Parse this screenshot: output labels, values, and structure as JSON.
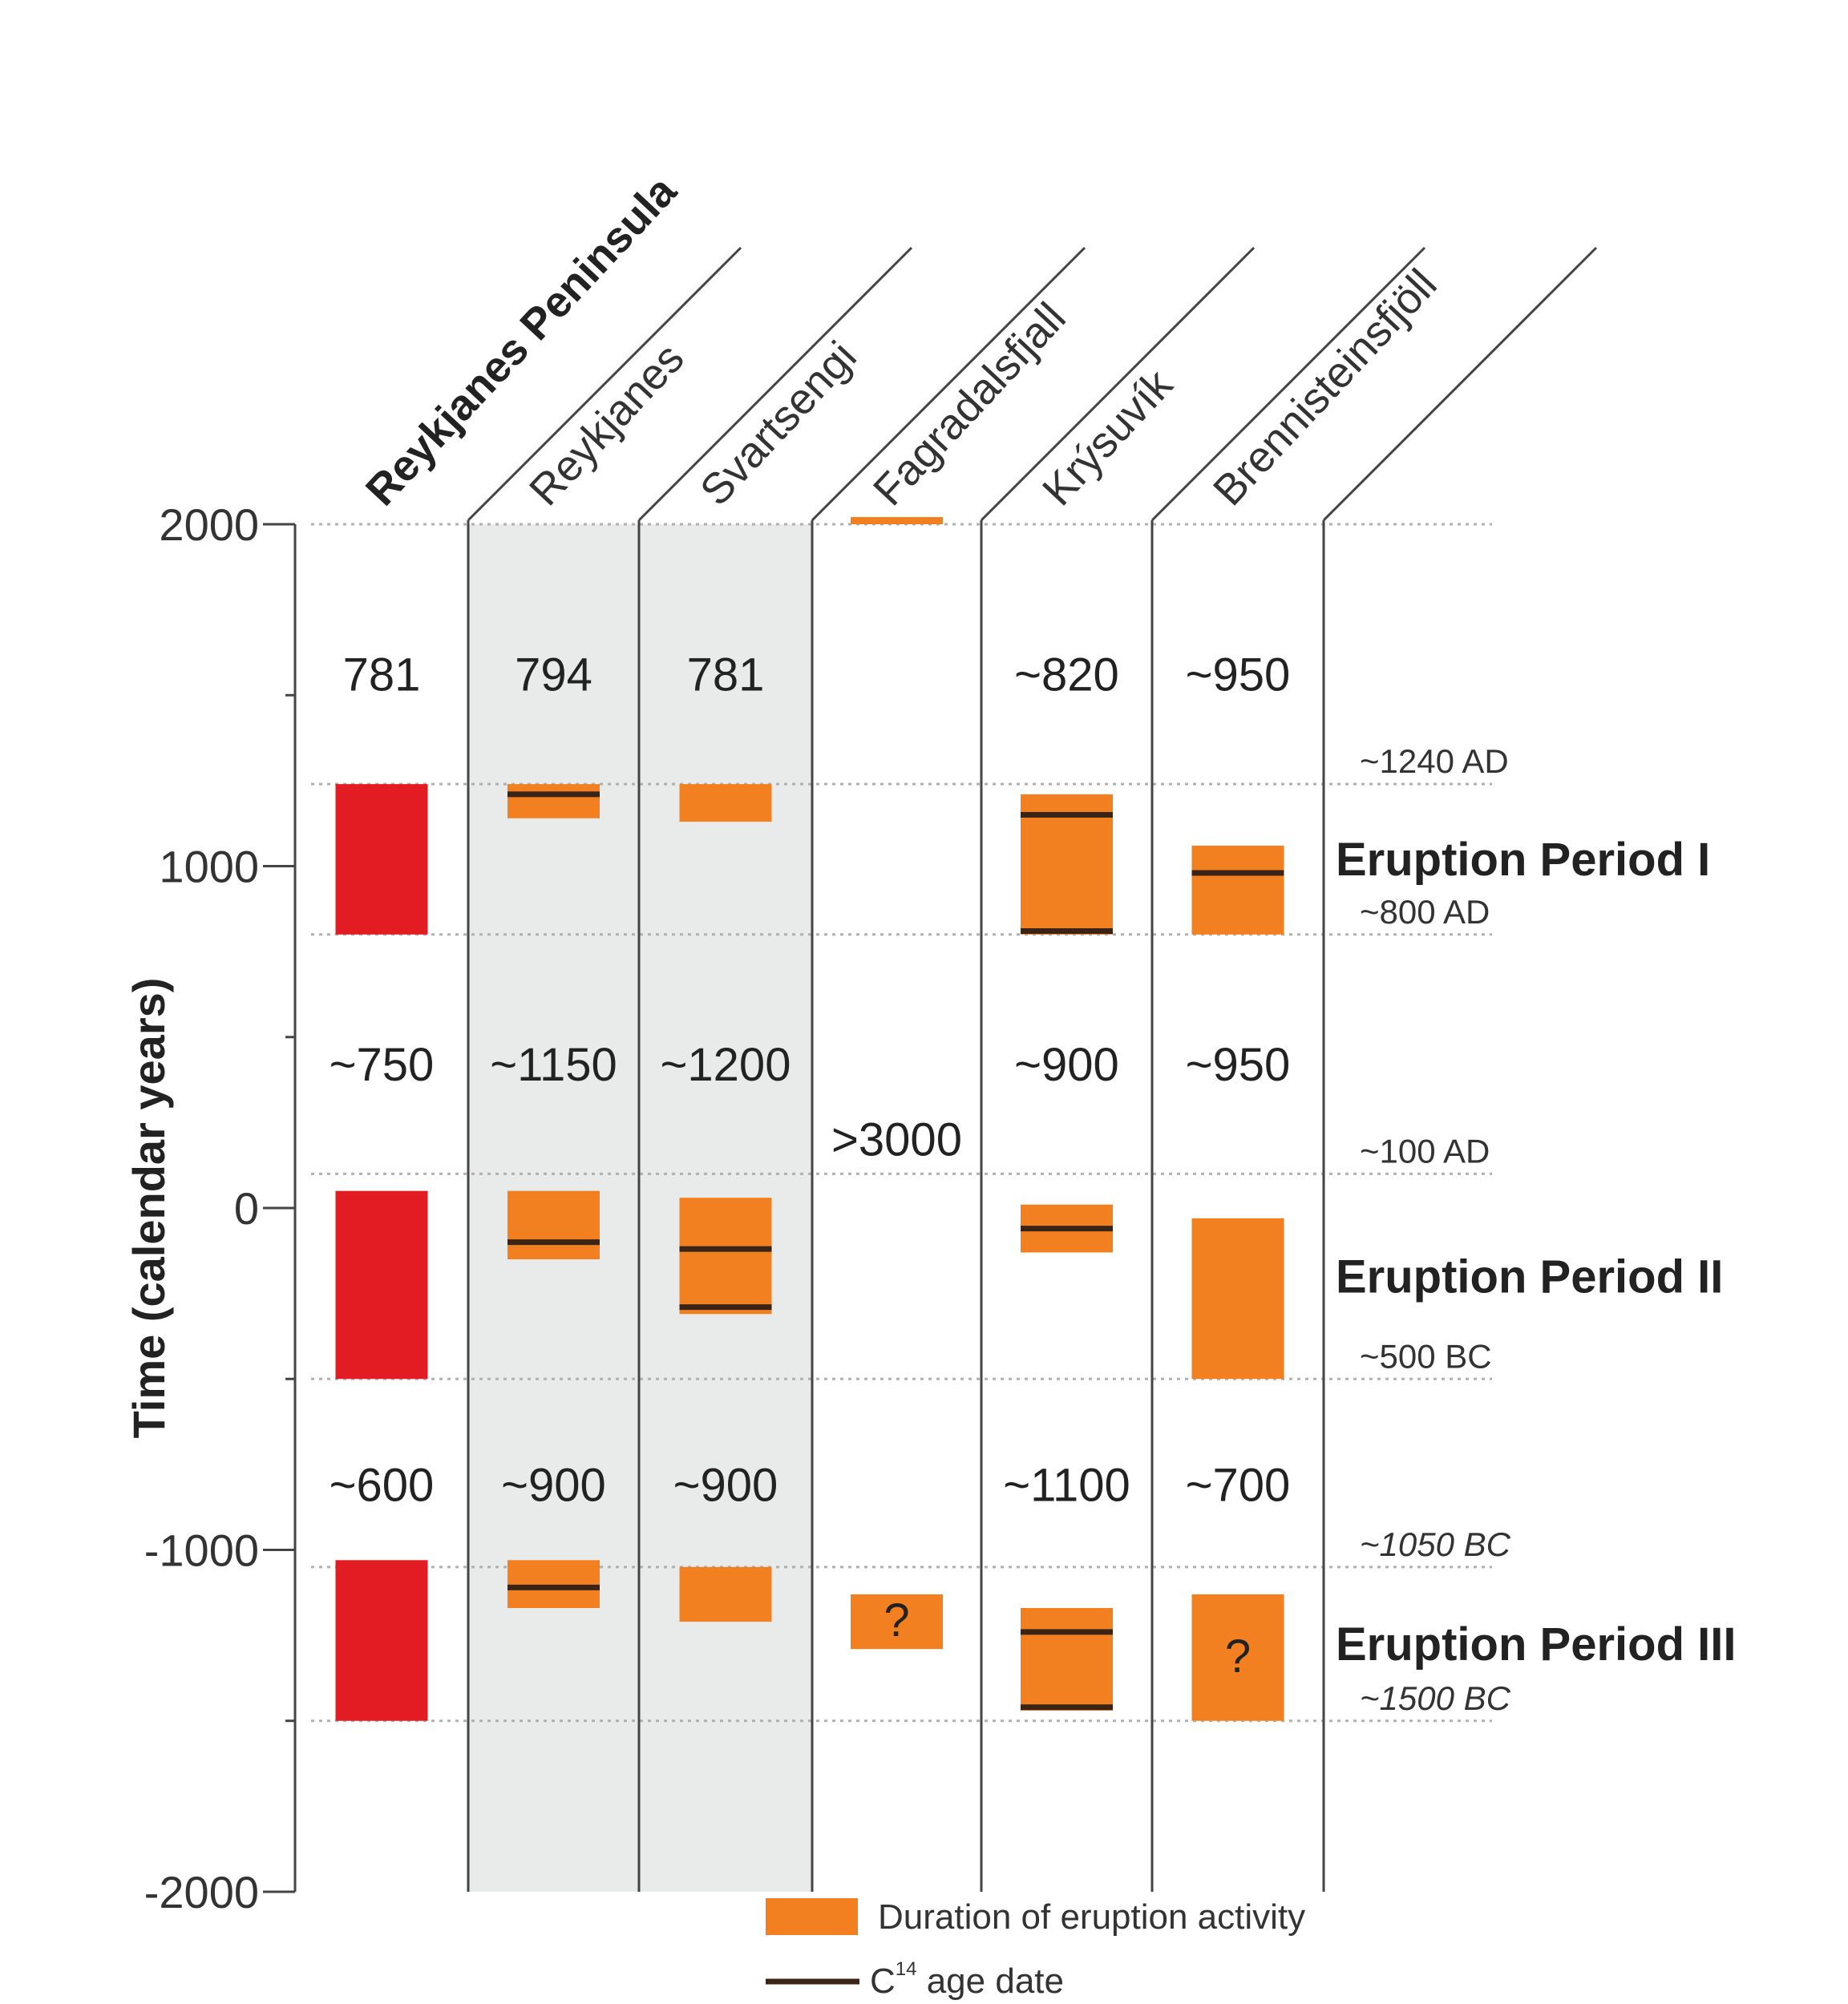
{
  "chart_data": {
    "type": "bar",
    "subtype": "range-timeline",
    "title": "Reykjanes Peninsula",
    "ylabel": "Time (calendar years)",
    "xlabel": "",
    "ylim": [
      -2000,
      2000
    ],
    "yticks": [
      2000,
      1000,
      0,
      -1000,
      -2000
    ],
    "ytick_labels": [
      "2000",
      "1000",
      "0",
      "-1000",
      "-2000"
    ],
    "grid": "dotted lines at period boundaries",
    "categories": [
      "Reykjanes Peninsula",
      "Reykjanes",
      "Svartsengi",
      "Fagradalsfjall",
      "Krýsuvík",
      "Brennisteinsfjöll"
    ],
    "shaded_columns": [
      "Reykjanes",
      "Svartsengi"
    ],
    "period_boundaries": [
      {
        "year": 1240,
        "label": "~1240 AD"
      },
      {
        "year": 800,
        "label": "~800 AD"
      },
      {
        "year": 100,
        "label": "~100 AD"
      },
      {
        "year": -500,
        "label": "~500 BC"
      },
      {
        "year": -1050,
        "label": "~1050 BC"
      },
      {
        "year": -1500,
        "label": "~1500 BC"
      }
    ],
    "periods": [
      {
        "name": "Eruption Period I",
        "start": 1240,
        "end": 800
      },
      {
        "name": "Eruption Period II",
        "start": 100,
        "end": -500
      },
      {
        "name": "Eruption Period III",
        "start": -1050,
        "end": -1500
      }
    ],
    "interval_labels": [
      {
        "anchor_year": 1560,
        "values": [
          "781",
          "794",
          "781",
          "",
          "~820",
          "~950"
        ]
      },
      {
        "anchor_year": 420,
        "values": [
          "~750",
          "~1150",
          "~1200",
          "",
          "~900",
          "~950"
        ]
      },
      {
        "anchor_year": 200,
        "values": [
          "",
          "",
          "",
          ">3000",
          "",
          ""
        ]
      },
      {
        "anchor_year": -810,
        "values": [
          "~600",
          "~900",
          "~900",
          "",
          "~1100",
          "~700"
        ]
      }
    ],
    "series": [
      {
        "name": "Reykjanes Peninsula",
        "color": "#e31b23",
        "ranges": [
          {
            "top": 1240,
            "bottom": 800,
            "c14": []
          },
          {
            "top": 50,
            "bottom": -500,
            "c14": []
          },
          {
            "top": -1030,
            "bottom": -1500,
            "c14": []
          }
        ]
      },
      {
        "name": "Reykjanes",
        "color": "#f28020",
        "ranges": [
          {
            "top": 1240,
            "bottom": 1140,
            "c14": [
              1210
            ]
          },
          {
            "top": 50,
            "bottom": -150,
            "c14": [
              -100
            ]
          },
          {
            "top": -1030,
            "bottom": -1170,
            "c14": [
              -1110
            ]
          }
        ]
      },
      {
        "name": "Svartsengi",
        "color": "#f28020",
        "ranges": [
          {
            "top": 1240,
            "bottom": 1130,
            "c14": []
          },
          {
            "top": 30,
            "bottom": -310,
            "c14": [
              -120,
              -290
            ]
          },
          {
            "top": -1050,
            "bottom": -1210,
            "c14": []
          }
        ]
      },
      {
        "name": "Fagradalsfjall",
        "color": "#f28020",
        "ranges": [
          {
            "top": 2021,
            "bottom": 2000,
            "c14": [],
            "note": "recent thin bar"
          },
          {
            "top": -1130,
            "bottom": -1290,
            "c14": [],
            "label": "?"
          }
        ]
      },
      {
        "name": "Krýsuvík",
        "color": "#f28020",
        "ranges": [
          {
            "top": 1210,
            "bottom": 800,
            "c14": [
              1150,
              810
            ]
          },
          {
            "top": 10,
            "bottom": -130,
            "c14": [
              -60
            ]
          },
          {
            "top": -1170,
            "bottom": -1470,
            "c14": [
              -1240,
              -1460
            ]
          }
        ]
      },
      {
        "name": "Brennisteinsfjöll",
        "color": "#f28020",
        "ranges": [
          {
            "top": 1060,
            "bottom": 800,
            "c14": [
              980
            ]
          },
          {
            "top": -30,
            "bottom": -500,
            "c14": []
          },
          {
            "top": -1130,
            "bottom": -1500,
            "c14": [],
            "label": "?"
          }
        ]
      }
    ],
    "legend": [
      {
        "type": "box",
        "color": "#f28020",
        "label": "Duration of eruption activity"
      },
      {
        "type": "line",
        "color": "#3a2417",
        "label": "C¹⁴ age date"
      }
    ],
    "legend_position": "bottom"
  },
  "legend_line_label_main": "C",
  "legend_line_label_sup": "14",
  "legend_line_label_rest": " age date",
  "colors": {
    "red": "#e31b23",
    "orange": "#f28020",
    "c14_line": "#3a2417",
    "shade": "#e9eaea",
    "axis": "#444444",
    "grid": "#b0b0b0"
  }
}
